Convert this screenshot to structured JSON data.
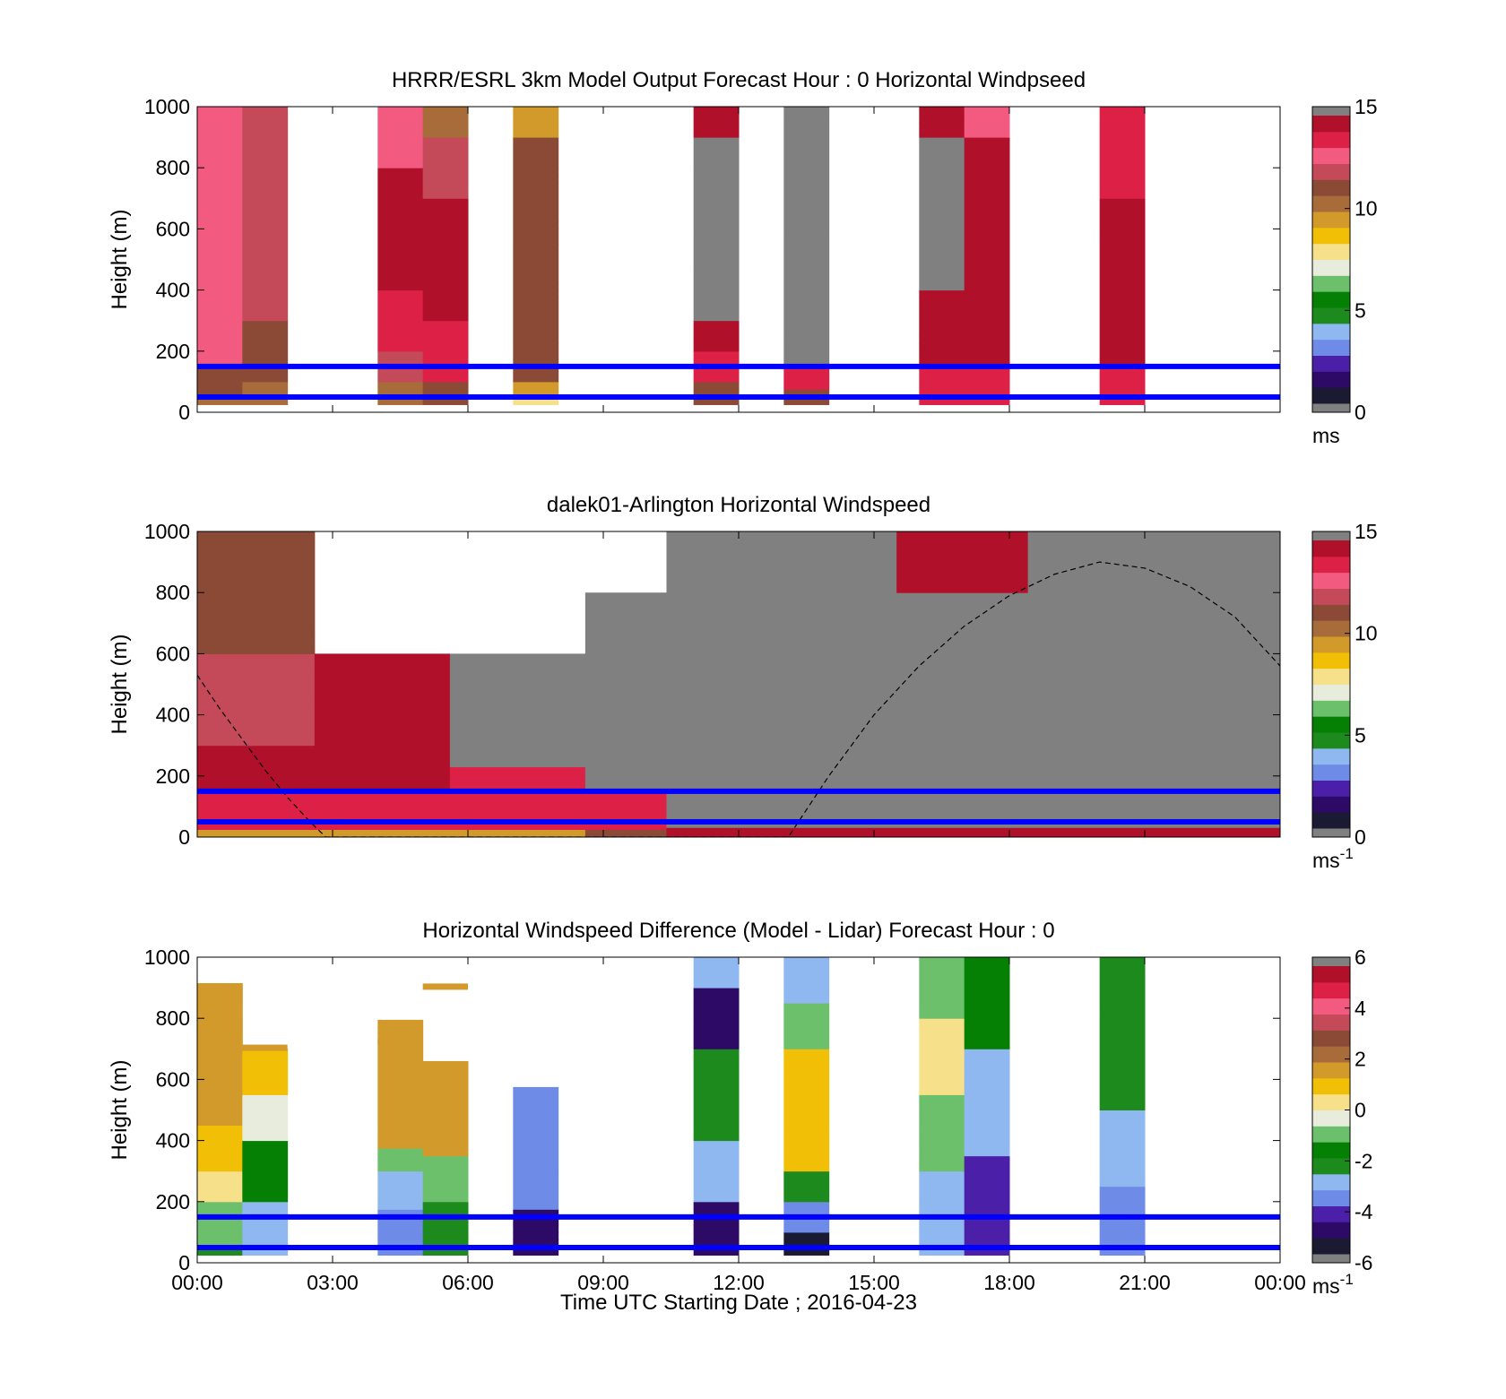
{
  "figure": {
    "xlabel": "Time UTC  Starting Date ; 2016-04-23",
    "x_ticks": [
      "00:00",
      "03:00",
      "06:00",
      "09:00",
      "12:00",
      "15:00",
      "18:00",
      "21:00",
      "00:00"
    ]
  },
  "colors": {
    "blue_line": "#0000ff",
    "gray": "#808080",
    "windspeed_colormap": [
      "#1a1a33",
      "#2d0a66",
      "#4b1fa8",
      "#6f8be8",
      "#8fb8f0",
      "#1d8a1d",
      "#058005",
      "#6cc06c",
      "#e8ecdc",
      "#f6e08a",
      "#f2bf07",
      "#d29a2a",
      "#a86b3a",
      "#8b4a36",
      "#c44a5a",
      "#f25a80",
      "#dc2046",
      "#b0102a"
    ],
    "difference_colormap": [
      "#1a1a33",
      "#2d0a66",
      "#4b1fa8",
      "#6f8be8",
      "#8fb8f0",
      "#1d8a1d",
      "#058005",
      "#6cc06c",
      "#e8ecdc",
      "#f6e08a",
      "#f2bf07",
      "#d29a2a",
      "#a86b3a",
      "#8b4a36",
      "#c44a5a",
      "#f25a80",
      "#dc2046",
      "#b0102a"
    ]
  },
  "chart_data": [
    {
      "type": "heatmap",
      "title": "HRRR/ESRL 3km Model Output   Forecast Hour : 0 Horizontal Windpseed",
      "ylabel": "Height (m)",
      "xlim_hours": [
        0,
        24
      ],
      "ylim": [
        0,
        1000
      ],
      "y_ticks": [
        "0",
        "200",
        "400",
        "600",
        "800",
        "1000"
      ],
      "colorbar": {
        "min": 0,
        "max": 15,
        "ticks": [
          "0",
          "5",
          "10",
          "15"
        ],
        "unit": "ms",
        "superscript": ""
      },
      "reference_lines_m": [
        50,
        150
      ],
      "columns": [
        {
          "start_h": 0,
          "end_h": 1,
          "top_m": 1000,
          "profile": [
            [
              20,
              9.5
            ],
            [
              60,
              10.5
            ],
            [
              100,
              11
            ],
            [
              150,
              11.5
            ],
            [
              250,
              12.5
            ],
            [
              1000,
              13
            ]
          ]
        },
        {
          "start_h": 1,
          "end_h": 2,
          "top_m": 1000,
          "profile": [
            [
              20,
              9.5
            ],
            [
              100,
              10
            ],
            [
              300,
              11
            ],
            [
              1000,
              12
            ]
          ]
        },
        {
          "start_h": 4,
          "end_h": 5,
          "top_m": 1000,
          "profile": [
            [
              20,
              6.5
            ],
            [
              100,
              10.5
            ],
            [
              200,
              12
            ],
            [
              400,
              14
            ],
            [
              800,
              14.5
            ],
            [
              1000,
              13
            ]
          ]
        },
        {
          "start_h": 5,
          "end_h": 6,
          "top_m": 1000,
          "profile": [
            [
              20,
              9.5
            ],
            [
              100,
              11.5
            ],
            [
              300,
              14
            ],
            [
              700,
              15
            ],
            [
              900,
              12
            ],
            [
              1000,
              10.5
            ]
          ]
        },
        {
          "start_h": 7,
          "end_h": 8,
          "top_m": 1000,
          "profile": [
            [
              20,
              5
            ],
            [
              50,
              8
            ],
            [
              100,
              9.5
            ],
            [
              900,
              11
            ],
            [
              1000,
              9.8
            ]
          ]
        },
        {
          "start_h": 11,
          "end_h": 12,
          "top_m": 1000,
          "profile": [
            [
              20,
              8
            ],
            [
              100,
              11
            ],
            [
              200,
              14
            ],
            [
              300,
              15
            ],
            [
              900,
              0
            ],
            [
              1000,
              15
            ]
          ]
        },
        {
          "start_h": 13,
          "end_h": 14,
          "top_m": 1000,
          "profile": [
            [
              20,
              9.5
            ],
            [
              80,
              11
            ],
            [
              150,
              14
            ],
            [
              1000,
              0
            ]
          ]
        },
        {
          "start_h": 16,
          "end_h": 17,
          "top_m": 1000,
          "profile": [
            [
              20,
              11
            ],
            [
              150,
              13.5
            ],
            [
              400,
              15
            ],
            [
              900,
              0
            ],
            [
              1000,
              14.5
            ]
          ]
        },
        {
          "start_h": 17,
          "end_h": 18,
          "top_m": 1000,
          "profile": [
            [
              20,
              12
            ],
            [
              150,
              13.5
            ],
            [
              700,
              15
            ],
            [
              900,
              14.5
            ],
            [
              1000,
              13
            ]
          ]
        },
        {
          "start_h": 20,
          "end_h": 21,
          "top_m": 1000,
          "profile": [
            [
              20,
              12
            ],
            [
              150,
              13.5
            ],
            [
              700,
              14.5
            ],
            [
              1000,
              14
            ]
          ]
        }
      ]
    },
    {
      "type": "heatmap",
      "title": "dalek01-Arlington  Horizontal Windspeed",
      "ylabel": "Height (m)",
      "xlim_hours": [
        0,
        24
      ],
      "ylim": [
        0,
        1000
      ],
      "y_ticks": [
        "0",
        "200",
        "400",
        "600",
        "800",
        "1000"
      ],
      "colorbar": {
        "min": 0,
        "max": 15,
        "ticks": [
          "0",
          "5",
          "10",
          "15"
        ],
        "unit": "ms",
        "superscript": "-1"
      },
      "reference_lines_m": [
        50,
        150
      ],
      "regions": [
        {
          "start_h": 0,
          "end_h": 2.6,
          "bottom_m": 0,
          "top_m": 1000,
          "profile": [
            [
              30,
              9.5
            ],
            [
              150,
              14
            ],
            [
              300,
              14.5
            ],
            [
              600,
              12
            ],
            [
              1000,
              11
            ]
          ]
        },
        {
          "start_h": 2.6,
          "end_h": 5.6,
          "bottom_m": 0,
          "top_m": 600,
          "profile": [
            [
              30,
              9.5
            ],
            [
              150,
              14
            ],
            [
              600,
              14.5
            ]
          ]
        },
        {
          "start_h": 5.6,
          "end_h": 8.6,
          "bottom_m": 0,
          "top_m": 230,
          "profile": [
            [
              30,
              9.5
            ],
            [
              230,
              14
            ]
          ]
        },
        {
          "start_h": 5.6,
          "end_h": 8.6,
          "bottom_m": 230,
          "top_m": 600,
          "profile": [
            [
              600,
              0
            ]
          ]
        },
        {
          "start_h": 8.6,
          "end_h": 10.4,
          "bottom_m": 0,
          "top_m": 800,
          "profile": [
            [
              30,
              11
            ],
            [
              150,
              14
            ],
            [
              800,
              0
            ]
          ]
        },
        {
          "start_h": 10.4,
          "end_h": 24,
          "bottom_m": 0,
          "top_m": 1000,
          "profile": [
            [
              1000,
              0
            ]
          ]
        },
        {
          "start_h": 15.5,
          "end_h": 18.4,
          "bottom_m": 800,
          "top_m": 1000,
          "profile": [
            [
              1000,
              14.5
            ]
          ]
        },
        {
          "start_h": 10.4,
          "end_h": 24,
          "bottom_m": 0,
          "top_m": 30,
          "profile": [
            [
              30,
              15
            ]
          ]
        }
      ],
      "dashed_curve": {
        "x_hours": [
          0,
          0.5,
          1,
          1.5,
          2,
          2.5,
          2.85,
          13.1,
          14,
          15,
          16,
          17,
          18,
          19,
          20,
          21,
          22,
          23,
          24
        ],
        "y_m": [
          530,
          420,
          320,
          220,
          130,
          50,
          0,
          0,
          200,
          400,
          560,
          690,
          790,
          860,
          900,
          880,
          820,
          720,
          560
        ]
      }
    },
    {
      "type": "heatmap",
      "title": "Horizontal Windspeed Difference (Model - Lidar) Forecast Hour : 0",
      "ylabel": "Height (m)",
      "xlim_hours": [
        0,
        24
      ],
      "ylim": [
        0,
        1000
      ],
      "y_ticks": [
        "0",
        "200",
        "400",
        "600",
        "800",
        "1000"
      ],
      "colorbar": {
        "min": -6,
        "max": 6,
        "ticks": [
          "-6",
          "-4",
          "-2",
          "0",
          "2",
          "4",
          "6"
        ],
        "unit": "ms",
        "superscript": "-1"
      },
      "reference_lines_m": [
        50,
        150
      ],
      "columns": [
        {
          "start_h": 0,
          "end_h": 1,
          "top_m": 915,
          "profile": [
            [
              60,
              -2.5
            ],
            [
              200,
              -1
            ],
            [
              300,
              0
            ],
            [
              450,
              0.8
            ],
            [
              915,
              1.6
            ]
          ]
        },
        {
          "start_h": 1,
          "end_h": 2,
          "top_m": 700,
          "profile": [
            [
              200,
              -3.2
            ],
            [
              400,
              -1.5
            ],
            [
              550,
              -0.5
            ],
            [
              700,
              0.8
            ]
          ]
        },
        {
          "start_h": 4,
          "end_h": 5,
          "top_m": 795,
          "profile": [
            [
              180,
              -4
            ],
            [
              300,
              -3
            ],
            [
              380,
              -1
            ],
            [
              795,
              1.5
            ]
          ]
        },
        {
          "start_h": 5,
          "end_h": 6,
          "top_m": 660,
          "profile": [
            [
              200,
              -2.5
            ],
            [
              350,
              -1
            ],
            [
              660,
              1.5
            ]
          ]
        },
        {
          "start_h": 7,
          "end_h": 8,
          "top_m": 575,
          "profile": [
            [
              180,
              -5
            ],
            [
              575,
              -3.8
            ]
          ]
        },
        {
          "start_h": 11,
          "end_h": 12,
          "top_m": 1000,
          "profile": [
            [
              200,
              -5.2
            ],
            [
              400,
              -3
            ],
            [
              700,
              -2.5
            ],
            [
              900,
              -4.8
            ],
            [
              1000,
              -3
            ]
          ]
        },
        {
          "start_h": 13,
          "end_h": 14,
          "top_m": 1000,
          "profile": [
            [
              100,
              -5.5
            ],
            [
              200,
              -4
            ],
            [
              300,
              -2.5
            ],
            [
              700,
              1
            ],
            [
              850,
              -1
            ],
            [
              1000,
              -2.8
            ]
          ]
        },
        {
          "start_h": 16,
          "end_h": 17,
          "top_m": 1000,
          "profile": [
            [
              300,
              -3
            ],
            [
              550,
              -1
            ],
            [
              800,
              0.5
            ],
            [
              1000,
              -1
            ]
          ]
        },
        {
          "start_h": 17,
          "end_h": 18,
          "top_m": 1000,
          "profile": [
            [
              350,
              -4.2
            ],
            [
              700,
              -2.8
            ],
            [
              1000,
              -2
            ]
          ]
        },
        {
          "start_h": 20,
          "end_h": 21,
          "top_m": 1000,
          "profile": [
            [
              250,
              -4
            ],
            [
              500,
              -3
            ],
            [
              1000,
              -2.5
            ]
          ]
        }
      ],
      "small_bars": [
        {
          "start_h": 1,
          "end_h": 2,
          "height_m": 705,
          "value": 1.5
        },
        {
          "start_h": 4,
          "end_h": 5,
          "height_m": 725,
          "value": 1.5
        },
        {
          "start_h": 5,
          "end_h": 6,
          "height_m": 905,
          "value": 1.5
        }
      ]
    }
  ]
}
